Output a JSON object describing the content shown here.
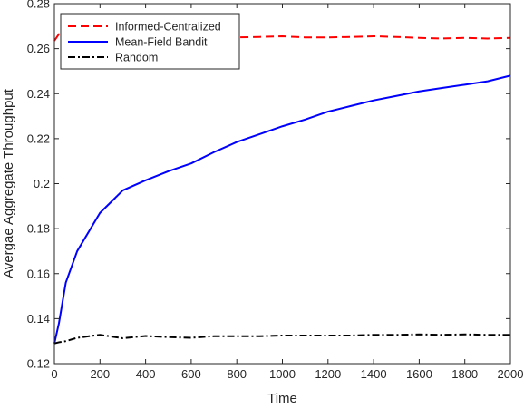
{
  "chart_data": {
    "type": "line",
    "xlabel": "Time",
    "ylabel": "Avergae Aggregate Throughput",
    "xlim": [
      0,
      2000
    ],
    "ylim": [
      0.12,
      0.28
    ],
    "xticks": [
      0,
      200,
      400,
      600,
      800,
      1000,
      1200,
      1400,
      1600,
      1800,
      2000
    ],
    "xtick_labels": [
      "0",
      "200",
      "400",
      "600",
      "800",
      "1000",
      "1200",
      "1400",
      "1600",
      "1800",
      "2000"
    ],
    "yticks": [
      0.12,
      0.14,
      0.16,
      0.18,
      0.2,
      0.22,
      0.24,
      0.26,
      0.28
    ],
    "ytick_labels": [
      "0.12",
      "0.14",
      "0.16",
      "0.18",
      "0.2",
      "0.22",
      "0.24",
      "0.26",
      "0.28"
    ],
    "grid": false,
    "legend_position": "top-left",
    "series": [
      {
        "name": "Informed-Centralized",
        "color": "#ff0000",
        "style": "dashed",
        "x": [
          0,
          20,
          50,
          100,
          200,
          300,
          400,
          500,
          600,
          700,
          800,
          900,
          1000,
          1100,
          1200,
          1300,
          1400,
          1500,
          1600,
          1700,
          1800,
          1900,
          2000
        ],
        "y": [
          0.2635,
          0.2665,
          0.265,
          0.2655,
          0.265,
          0.265,
          0.2652,
          0.265,
          0.2648,
          0.265,
          0.265,
          0.2652,
          0.2655,
          0.265,
          0.265,
          0.2652,
          0.2655,
          0.2652,
          0.2648,
          0.2645,
          0.2648,
          0.2645,
          0.2648
        ]
      },
      {
        "name": "Mean-Field Bandit",
        "color": "#0000ff",
        "style": "solid",
        "x": [
          0,
          20,
          50,
          100,
          200,
          300,
          400,
          500,
          600,
          700,
          800,
          900,
          1000,
          1100,
          1200,
          1300,
          1400,
          1500,
          1600,
          1700,
          1800,
          1900,
          2000
        ],
        "y": [
          0.129,
          0.138,
          0.156,
          0.17,
          0.187,
          0.197,
          0.2015,
          0.2055,
          0.209,
          0.214,
          0.2185,
          0.222,
          0.2255,
          0.2285,
          0.232,
          0.2345,
          0.237,
          0.239,
          0.241,
          0.2425,
          0.244,
          0.2455,
          0.248
        ]
      },
      {
        "name": "Random",
        "color": "#000000",
        "style": "dashdot",
        "x": [
          0,
          20,
          50,
          100,
          200,
          300,
          400,
          500,
          600,
          700,
          800,
          900,
          1000,
          1100,
          1200,
          1300,
          1400,
          1500,
          1600,
          1700,
          1800,
          1900,
          2000
        ],
        "y": [
          0.129,
          0.1295,
          0.13,
          0.1315,
          0.1328,
          0.1313,
          0.1323,
          0.1318,
          0.1315,
          0.1322,
          0.1322,
          0.1322,
          0.1325,
          0.1325,
          0.1325,
          0.1325,
          0.1328,
          0.1328,
          0.133,
          0.1328,
          0.133,
          0.1328,
          0.1328
        ]
      }
    ]
  }
}
